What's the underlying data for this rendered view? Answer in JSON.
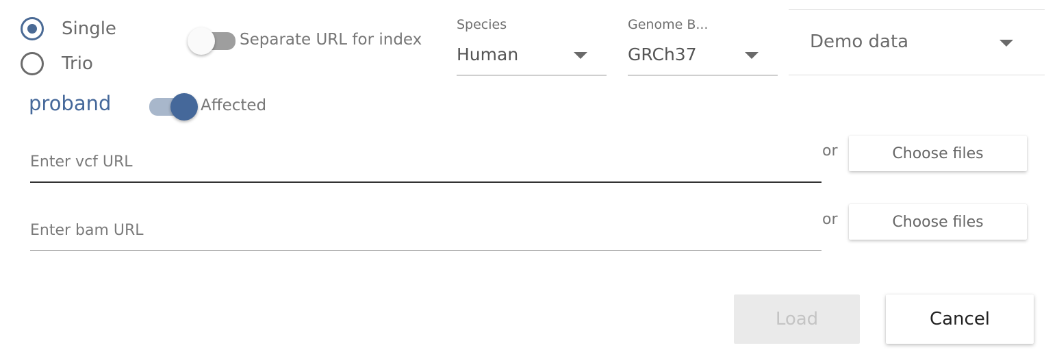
{
  "mode": {
    "options": [
      {
        "label": "Single",
        "checked": true
      },
      {
        "label": "Trio",
        "checked": false
      }
    ]
  },
  "separate_index": {
    "label": "Separate URL for index",
    "on": false
  },
  "species": {
    "caption": "Species",
    "value": "Human"
  },
  "genome_build": {
    "caption": "Genome B...",
    "value": "GRCh37"
  },
  "demo": {
    "value": "Demo data"
  },
  "sample": {
    "name": "proband",
    "affected": {
      "label": "Affected",
      "on": true
    }
  },
  "vcf": {
    "placeholder": "Enter vcf URL",
    "value": "",
    "or": "or",
    "button": "Choose files"
  },
  "bam": {
    "placeholder": "Enter bam URL",
    "value": "",
    "or": "or",
    "button": "Choose files"
  },
  "actions": {
    "load": "Load",
    "load_enabled": false,
    "cancel": "Cancel"
  },
  "colors": {
    "accent": "#45689a",
    "accent_track": "#a8b7cb",
    "off_track": "#9e9e9e"
  }
}
